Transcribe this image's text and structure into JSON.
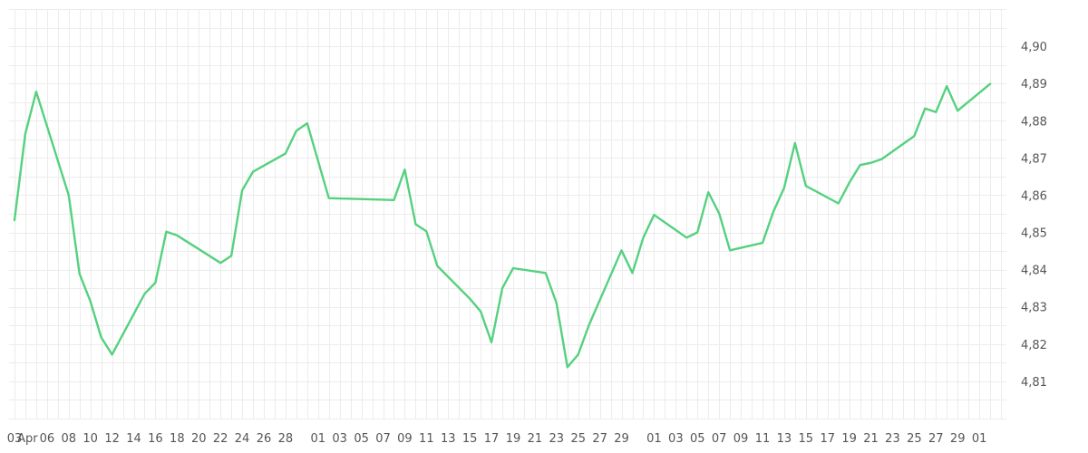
{
  "chart_data": {
    "type": "line",
    "grid": true,
    "ylim": [
      4.8,
      4.91
    ],
    "y_axis_position": "right",
    "y_ticks": [
      4.81,
      4.82,
      4.83,
      4.84,
      4.85,
      4.86,
      4.87,
      4.88,
      4.89,
      4.9
    ],
    "y_tick_labels": [
      "4,81",
      "4,82",
      "4,83",
      "4,84",
      "4,85",
      "4,86",
      "4,87",
      "4,88",
      "4,89",
      "4,90"
    ],
    "x_tick_labels": [
      "03",
      "Apr",
      "06",
      "08",
      "10",
      "12",
      "14",
      "16",
      "18",
      "20",
      "22",
      "24",
      "26",
      "28",
      "01",
      "03",
      "05",
      "07",
      "09",
      "11",
      "13",
      "15",
      "17",
      "19",
      "21",
      "23",
      "25",
      "27",
      "29",
      "01",
      "03",
      "05",
      "07",
      "09",
      "11",
      "13",
      "15",
      "17",
      "19",
      "21",
      "23",
      "25",
      "27",
      "29",
      "01"
    ],
    "x_tick_positions": [
      0,
      1.2,
      3,
      5,
      7,
      9,
      11,
      13,
      15,
      17,
      19,
      21,
      23,
      25,
      28,
      30,
      32,
      34,
      36,
      38,
      40,
      42,
      44,
      46,
      48,
      50,
      52,
      54,
      56,
      59,
      61,
      63,
      65,
      67,
      69,
      71,
      73,
      75,
      77,
      79,
      81,
      83,
      85,
      87,
      89
    ],
    "x_range": [
      -0.5,
      91.5
    ],
    "series": [
      {
        "color": "#55d17f",
        "x": [
          0,
          1,
          2,
          5,
          6,
          7,
          8,
          9,
          12,
          13,
          14,
          15,
          19,
          20,
          21,
          22,
          25,
          26,
          27,
          29,
          35,
          36,
          37,
          38,
          39,
          42,
          43,
          44,
          45,
          46,
          49,
          50,
          51,
          52,
          53,
          56,
          57,
          58,
          59,
          62,
          63,
          64,
          65,
          66,
          69,
          70,
          71,
          72,
          73,
          76,
          77,
          78,
          79,
          80,
          83,
          84,
          85,
          86,
          87,
          90
        ],
        "values": [
          4.8533,
          4.8765,
          4.8878,
          4.86,
          4.8389,
          4.8315,
          4.8218,
          4.8172,
          4.8335,
          4.8365,
          4.8502,
          4.8492,
          4.8418,
          4.8437,
          4.8613,
          4.8663,
          4.8712,
          4.8773,
          4.8793,
          4.8592,
          4.8587,
          4.8669,
          4.8522,
          4.8503,
          4.841,
          4.8322,
          4.8288,
          4.8205,
          4.835,
          4.8404,
          4.8391,
          4.831,
          4.8138,
          4.8172,
          4.8252,
          4.8452,
          4.8391,
          4.8486,
          4.8547,
          4.8486,
          4.85,
          4.8608,
          4.8551,
          4.8452,
          4.8472,
          4.8555,
          4.862,
          4.874,
          4.8625,
          4.8578,
          4.8633,
          4.8681,
          4.8687,
          4.8697,
          4.8759,
          4.8833,
          4.8823,
          4.8893,
          4.8827,
          4.8899
        ]
      }
    ]
  }
}
